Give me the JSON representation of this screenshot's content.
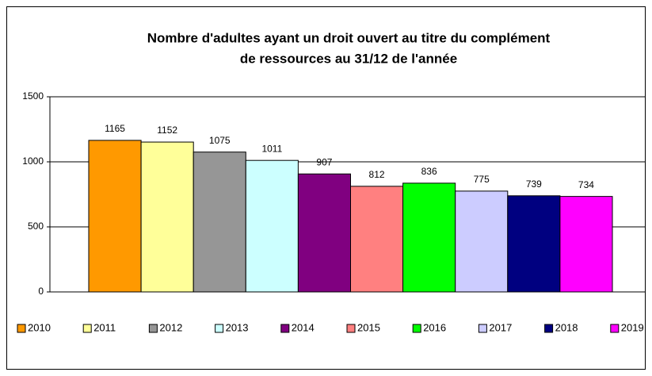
{
  "chart_data": {
    "type": "bar",
    "title": [
      "Nombre d'adultes ayant un droit ouvert au titre du complément",
      "de ressources au 31/12 de l'année"
    ],
    "categories": [
      null
    ],
    "series": [
      {
        "name": "2010",
        "color": "#ff9900",
        "values": [
          1165
        ]
      },
      {
        "name": "2011",
        "color": "#ffff99",
        "values": [
          1152
        ]
      },
      {
        "name": "2012",
        "color": "#969696",
        "values": [
          1075
        ]
      },
      {
        "name": "2013",
        "color": "#ccffff",
        "values": [
          1011
        ]
      },
      {
        "name": "2014",
        "color": "#800080",
        "values": [
          907
        ]
      },
      {
        "name": "2015",
        "color": "#ff8080",
        "values": [
          812
        ]
      },
      {
        "name": "2016",
        "color": "#00ff00",
        "values": [
          836
        ]
      },
      {
        "name": "2017",
        "color": "#ccccff",
        "values": [
          775
        ]
      },
      {
        "name": "2018",
        "color": "#000080",
        "values": [
          739
        ]
      },
      {
        "name": "2019",
        "color": "#ff00ff",
        "values": [
          734
        ]
      }
    ],
    "ylim": [
      0,
      1500
    ],
    "yticks": [
      0,
      500,
      1000,
      1500
    ],
    "grid": true,
    "legend": "bottom"
  }
}
